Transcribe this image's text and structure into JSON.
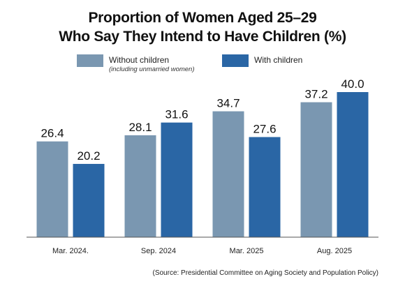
{
  "chart_data": {
    "type": "bar",
    "title": [
      "Proportion of Women Aged 25–29",
      "Who Say They Intend to Have Children (%)"
    ],
    "categories": [
      "Mar. 2024.",
      "Sep. 2024",
      "Mar. 2025",
      "Aug. 2025"
    ],
    "series": [
      {
        "name": "Without children",
        "note": "(including unmarried women)",
        "color": "#7a97b1",
        "values": [
          26.4,
          28.1,
          34.7,
          37.2
        ],
        "labels": [
          "26.4",
          "28.1",
          "34.7",
          "37.2"
        ]
      },
      {
        "name": "With children",
        "color": "#2a66a5",
        "values": [
          20.2,
          31.6,
          27.6,
          40.0
        ],
        "labels": [
          "20.2",
          "31.6",
          "27.6",
          "40.0"
        ]
      }
    ],
    "ylim": [
      0,
      40
    ],
    "grid": false,
    "legend": "top",
    "source": "(Source: Presidential Committee on Aging Society and Population Policy)"
  }
}
